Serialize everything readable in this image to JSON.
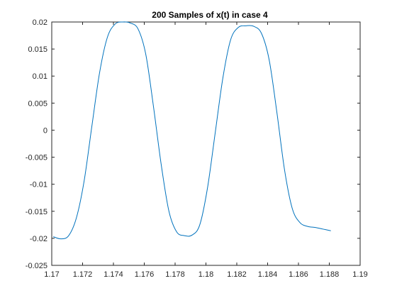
{
  "chart_data": {
    "type": "line",
    "title": "200 Samples of x(t) in case 4",
    "xlabel": "",
    "ylabel": "",
    "xlim": [
      1.17,
      1.19
    ],
    "ylim": [
      -0.025,
      0.02
    ],
    "xticks": [
      1.17,
      1.172,
      1.174,
      1.176,
      1.178,
      1.18,
      1.182,
      1.184,
      1.186,
      1.188,
      1.19
    ],
    "xtick_labels": [
      "1.17",
      "1.172",
      "1.174",
      "1.176",
      "1.178",
      "1.18",
      "1.182",
      "1.184",
      "1.186",
      "1.188",
      "1.19"
    ],
    "yticks": [
      -0.025,
      -0.02,
      -0.015,
      -0.01,
      -0.005,
      0,
      0.005,
      0.01,
      0.015,
      0.02
    ],
    "ytick_labels": [
      "-0.025",
      "-0.02",
      "-0.015",
      "-0.01",
      "-0.005",
      "0",
      "0.005",
      "0.01",
      "0.015",
      "0.02"
    ],
    "grid": false,
    "box": true,
    "series": [
      {
        "color": "#0072BD",
        "x": [
          1.1701,
          1.1706,
          1.1711,
          1.1716,
          1.1721,
          1.1726,
          1.1731,
          1.1736,
          1.1741,
          1.1746,
          1.1751,
          1.1756,
          1.1761,
          1.1766,
          1.1771,
          1.1776,
          1.1781,
          1.1786,
          1.1791,
          1.1796,
          1.1801,
          1.1806,
          1.1811,
          1.1816,
          1.1821,
          1.1826,
          1.1831,
          1.1836,
          1.1841,
          1.1846,
          1.1851,
          1.1856,
          1.1861,
          1.1866,
          1.1871,
          1.1876,
          1.1881
        ],
        "y": [
          -0.0197,
          -0.0201,
          -0.0195,
          -0.0162,
          -0.0094,
          0.0007,
          0.0106,
          0.0171,
          0.0196,
          0.02,
          0.0198,
          0.0187,
          0.014,
          0.0043,
          -0.0064,
          -0.015,
          -0.0188,
          -0.0195,
          -0.0194,
          -0.0175,
          -0.0107,
          -0.0005,
          0.0097,
          0.0167,
          0.019,
          0.0193,
          0.0192,
          0.0179,
          0.013,
          0.0033,
          -0.0074,
          -0.0145,
          -0.0171,
          -0.0178,
          -0.018,
          -0.0183,
          -0.0186
        ]
      }
    ]
  }
}
